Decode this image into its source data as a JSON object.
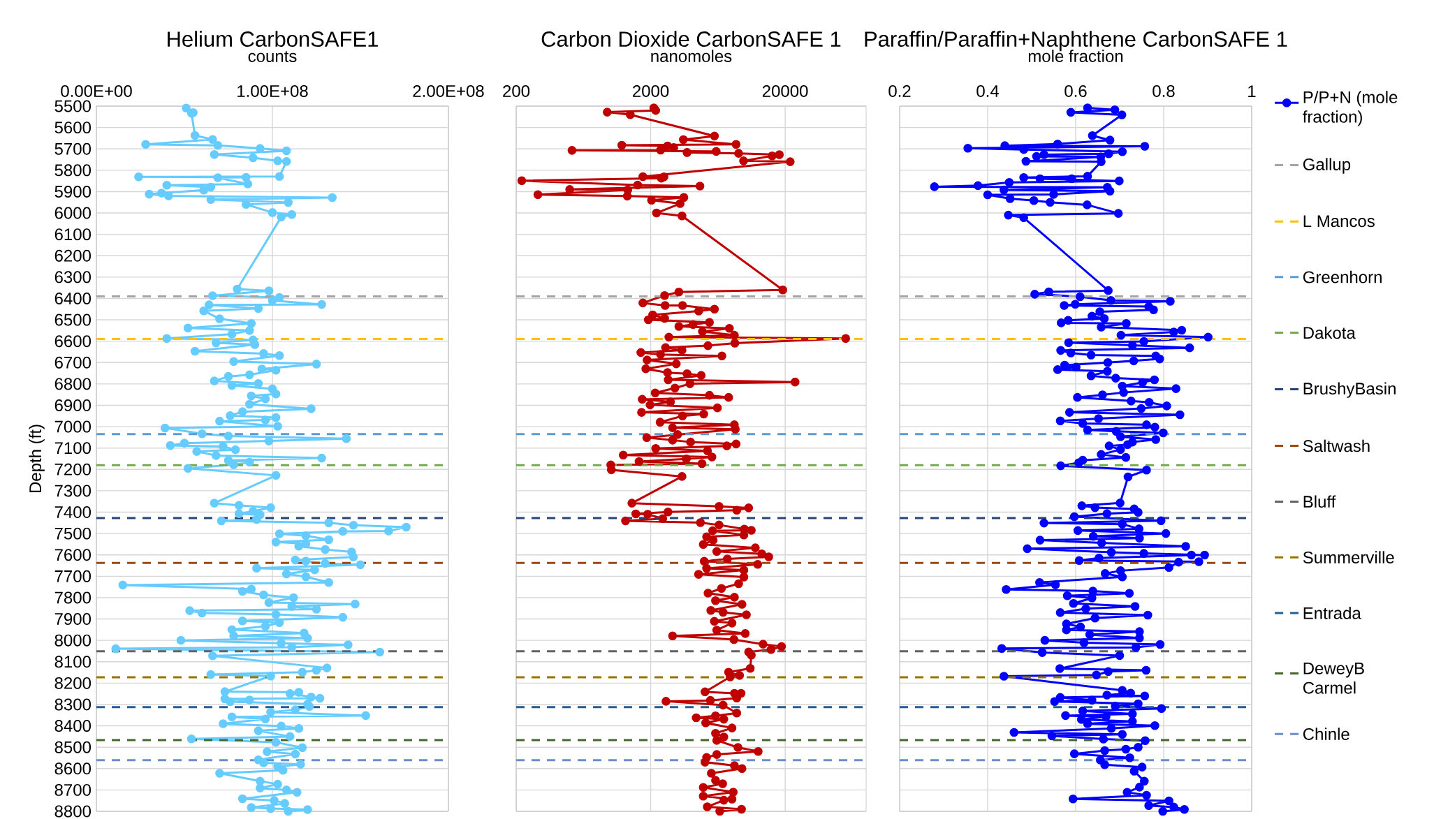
{
  "chart_data": [
    {
      "type": "line",
      "title": "Helium CarbonSAFE1",
      "subtitle": "counts",
      "ylabel": "Depth (ft)",
      "xlim": [
        0,
        200000000
      ],
      "xticks": [
        {
          "value": 0,
          "label": "0.00E+00"
        },
        {
          "value": 100000000,
          "label": "1.00E+08"
        },
        {
          "value": 200000000,
          "label": "2.00E+08"
        }
      ],
      "ylim": [
        8800,
        5500
      ],
      "yticks": [
        5500,
        5600,
        5700,
        5800,
        5900,
        6000,
        6100,
        6200,
        6300,
        6400,
        6500,
        6600,
        6700,
        6800,
        6900,
        7000,
        7100,
        7200,
        7300,
        7400,
        7500,
        7600,
        7700,
        7800,
        7900,
        8000,
        8100,
        8200,
        8300,
        8400,
        8500,
        8600,
        8700,
        8800
      ],
      "grid": true,
      "marker": "circle",
      "series": [
        {
          "color": "#66ccff",
          "x": [
            51000000.0,
            55000000.0,
            54000000.0,
            56000000.0,
            66000000.0,
            28000000.0,
            69000000.0,
            93000000.0,
            108000000.0,
            67000000.0,
            89000000.0,
            103000000.0,
            108000000.0,
            104000000.0,
            24000000.0,
            85000000.0,
            69000000.0,
            86000000.0,
            40000000.0,
            65000000.0,
            61000000.0,
            37000000.0,
            30000000.0,
            41000000.0,
            134000000.0,
            65000000.0,
            109000000.0,
            85000000.0,
            100000000.0,
            111000000.0,
            105000000.0,
            80000000.0,
            98000000.0,
            66000000.0,
            104000000.0,
            100000000.0,
            128000000.0,
            64000000.0,
            92000000.0,
            61000000.0,
            70000000.0,
            88000000.0,
            52000000.0,
            87000000.0,
            77000000.0,
            40000000.0,
            89000000.0,
            68000000.0,
            90000000.0,
            56000000.0,
            95000000.0,
            104000000.0,
            78000000.0,
            125000000.0,
            94000000.0,
            102000000.0,
            87000000.0,
            75000000.0,
            67000000.0,
            92000000.0,
            77000000.0,
            100000000.0,
            102000000.0,
            88000000.0,
            96000000.0,
            87000000.0,
            122000000.0,
            83000000.0,
            76000000.0,
            102000000.0,
            96000000.0,
            70000000.0,
            103000000.0,
            39000000.0,
            60000000.0,
            75000000.0,
            142000000.0,
            98000000.0,
            50000000.0,
            42000000.0,
            72000000.0,
            79000000.0,
            57000000.0,
            68000000.0,
            128000000.0,
            75000000.0,
            87000000.0,
            78000000.0,
            52000000.0,
            102000000.0,
            67000000.0,
            81000000.0,
            99000000.0,
            89000000.0,
            81000000.0,
            93000000.0,
            91000000.0,
            71000000.0,
            132000000.0,
            146000000.0,
            176000000.0,
            166000000.0,
            140000000.0,
            104000000.0,
            119000000.0,
            132000000.0,
            102000000.0,
            119000000.0,
            115000000.0,
            130000000.0,
            145000000.0,
            146000000.0,
            113000000.0,
            119000000.0,
            130000000.0,
            150000000.0,
            91000000.0,
            124000000.0,
            108000000.0,
            119000000.0,
            132000000.0,
            15000000.0,
            88000000.0,
            83000000.0,
            95000000.0,
            112000000.0,
            98000000.0,
            147000000.0,
            111000000.0,
            125000000.0,
            53000000.0,
            60000000.0,
            102000000.0,
            140000000.0,
            83000000.0,
            104000000.0,
            96000000.0,
            77000000.0,
            118000000.0,
            78000000.0,
            120000000.0,
            48000000.0,
            105000000.0,
            143000000.0,
            111000000.0,
            11000000.0,
            161000000.0,
            66000000.0,
            131000000.0,
            125000000.0,
            117000000.0,
            65000000.0,
            99000000.0,
            73000000.0,
            115000000.0,
            110000000.0,
            122000000.0,
            127000000.0,
            73000000.0,
            87000000.0,
            76000000.0,
            120000000.0,
            121000000.0,
            113000000.0,
            99000000.0,
            153000000.0,
            77000000.0,
            96000000.0,
            72000000.0,
            105000000.0,
            115000000.0,
            92000000.0,
            110000000.0,
            54000000.0,
            102000000.0,
            117000000.0,
            97000000.0,
            113000000.0,
            92000000.0,
            95000000.0,
            116000000.0,
            103000000.0,
            106000000.0,
            70000000.0,
            93000000.0,
            103000000.0,
            93000000.0,
            108000000.0,
            114000000.0,
            83000000.0,
            101000000.0,
            107000000.0,
            88000000.0,
            99000000.0,
            120000000.0,
            109000000.0
          ],
          "values": [
            5509,
            5530,
            5533,
            5637,
            5656,
            5679,
            5684,
            5698,
            5709,
            5726,
            5742,
            5756,
            5759,
            5829,
            5831,
            5833,
            5835,
            5864,
            5870,
            5879,
            5893,
            5907,
            5912,
            5920,
            5928,
            5937,
            5951,
            5960,
            5998,
            6007,
            6019,
            6356,
            6364,
            6387,
            6395,
            6410,
            6428,
            6430,
            6447,
            6458,
            6495,
            6517,
            6538,
            6550,
            6567,
            6587,
            6594,
            6608,
            6616,
            6647,
            6658,
            6667,
            6695,
            6707,
            6730,
            6736,
            6757,
            6765,
            6786,
            6798,
            6807,
            6823,
            6847,
            6856,
            6870,
            6895,
            6916,
            6930,
            6948,
            6957,
            6969,
            6974,
            6998,
            7006,
            7033,
            7044,
            7056,
            7067,
            7077,
            7088,
            7093,
            7108,
            7116,
            7135,
            7147,
            7158,
            7166,
            7178,
            7195,
            7228,
            7358,
            7368,
            7379,
            7396,
            7407,
            7412,
            7434,
            7441,
            7450,
            7461,
            7470,
            7488,
            7490,
            7501,
            7510,
            7529,
            7540,
            7548,
            7559,
            7575,
            7586,
            7610,
            7624,
            7629,
            7640,
            7646,
            7662,
            7670,
            7689,
            7702,
            7729,
            7741,
            7760,
            7771,
            7787,
            7800,
            7823,
            7830,
            7841,
            7854,
            7861,
            7872,
            7879,
            7892,
            7909,
            7917,
            7934,
            7950,
            7966,
            7979,
            7990,
            8000,
            8013,
            8021,
            8032,
            8039,
            8055,
            8072,
            8129,
            8140,
            8149,
            8160,
            8167,
            8240,
            8243,
            8249,
            8265,
            8271,
            8274,
            8279,
            8287,
            8298,
            8309,
            8325,
            8336,
            8352,
            8358,
            8368,
            8390,
            8401,
            8412,
            8423,
            8450,
            8461,
            8477,
            8502,
            8521,
            8532,
            8559,
            8573,
            8580,
            8591,
            8608,
            8622,
            8659,
            8673,
            8691,
            8700,
            8711,
            8741,
            8749,
            8763,
            8782,
            8787,
            8792,
            8800
          ]
        }
      ],
      "ref_lines": [
        {
          "axis": "y",
          "value": 6390,
          "color": "#a5a5a5",
          "line_style": "dashed"
        },
        {
          "axis": "y",
          "value": 6590,
          "color": "#ffc000",
          "line_style": "dashed"
        },
        {
          "axis": "y",
          "value": 7035,
          "color": "#5b9bd5",
          "line_style": "dashed"
        },
        {
          "axis": "y",
          "value": 7180,
          "color": "#70ad47",
          "line_style": "dashed"
        },
        {
          "axis": "y",
          "value": 7428,
          "color": "#264478",
          "line_style": "dashed"
        },
        {
          "axis": "y",
          "value": 7638,
          "color": "#9e480e",
          "line_style": "dashed"
        },
        {
          "axis": "y",
          "value": 8051,
          "color": "#636363",
          "line_style": "dashed"
        },
        {
          "axis": "y",
          "value": 8173,
          "color": "#997300",
          "line_style": "dashed"
        },
        {
          "axis": "y",
          "value": 8312,
          "color": "#255e91",
          "line_style": "dashed"
        },
        {
          "axis": "y",
          "value": 8467,
          "color": "#43682b",
          "line_style": "dashed"
        },
        {
          "axis": "y",
          "value": 8561,
          "color": "#698ed0",
          "line_style": "dashed"
        }
      ]
    },
    {
      "type": "line",
      "title": "Carbon Dioxide CarbonSAFE 1",
      "subtitle": "nanomoles",
      "log": "x",
      "xlim": [
        200,
        80000
      ],
      "xticks": [
        200,
        2000,
        20000
      ],
      "ylim": [
        8800,
        5500
      ],
      "yticks": [
        5500,
        5600,
        5700,
        5800,
        5900,
        6000,
        6100,
        6200,
        6300,
        6400,
        6500,
        6600,
        6700,
        6800,
        6900,
        7000,
        7100,
        7200,
        7300,
        7400,
        7500,
        7600,
        7700,
        7800,
        7900,
        8000,
        8100,
        8200,
        8300,
        8400,
        8500,
        8600,
        8700,
        8800
      ],
      "tick_labels": "x",
      "grid": true,
      "marker": "circle",
      "series": [
        {
          "color": "#c00000",
          "x": [
            2110,
            2180,
            950,
            1410,
            5960,
            3500,
            8630,
            1220,
            2670,
            2970,
            2370,
            520,
            6140,
            3730,
            9010,
            18100,
            16000,
            9810,
            21800,
            1750,
            2510,
            2400,
            220,
            1600,
            4650,
            500,
            1350,
            290,
            1340,
            3530,
            2030,
            3310,
            2210,
            3420,
            19200,
            3240,
            2540,
            1750,
            2560,
            3450,
            5960,
            4550,
            2070,
            2540,
            1920,
            5470,
            4130,
            3240,
            7700,
            4850,
            8380,
            2730,
            56400,
            8450,
            5330,
            2580,
            3420,
            1690,
            2370,
            6770,
            1880,
            3100,
            1840,
            2670,
            3730,
            4750,
            2700,
            23700,
            3920,
            3030,
            2160,
            5470,
            7600,
            1730,
            2810,
            1980,
            6270,
            1710,
            4960,
            3450,
            2350,
            8380,
            2910,
            8520,
            3170,
            1870,
            2910,
            3960,
            8630,
            7370,
            2180,
            5290,
            1250,
            5710,
            3680,
            1640,
            4810,
            1010,
            1020,
            3420,
            1450,
            6450,
            10700,
            8730,
            2690,
            1550,
            1900,
            2460,
            1300,
            4690,
            6450,
            9940,
            11200,
            5780,
            9860,
            5210,
            5830,
            4920,
            12000,
            6200,
            13400,
            15100,
            7430,
            5000,
            12500,
            5210,
            9860,
            4540,
            9860,
            9020,
            6720,
            5340,
            8390,
            6070,
            9550,
            5600,
            6910,
            10300,
            5950,
            8050,
            6200,
            10100,
            2910,
            8320,
            13700,
            18800,
            15700,
            10700,
            11200,
            11000,
            7590,
            9170,
            7800,
            5070,
            8390,
            9400,
            8730,
            5560,
            2600,
            6910,
            8730,
            6070,
            4360,
            7000,
            5130,
            8050,
            6070,
            7000,
            6200,
            8910,
            12600,
            6200,
            5210,
            5070,
            8390,
            9550,
            5650,
            6070,
            6860,
            4920,
            8220,
            4920,
            8050,
            7000,
            5270,
            9470,
            6530
          ],
          "values": [
            5508,
            5520,
            5528,
            5540,
            5640,
            5657,
            5679,
            5683,
            5686,
            5694,
            5706,
            5707,
            5712,
            5717,
            5721,
            5727,
            5733,
            5756,
            5760,
            5830,
            5831,
            5837,
            5849,
            5869,
            5874,
            5890,
            5892,
            5914,
            5921,
            5927,
            5940,
            5956,
            6000,
            6014,
            6360,
            6370,
            6386,
            6421,
            6433,
            6433,
            6450,
            6459,
            6477,
            6493,
            6500,
            6512,
            6522,
            6531,
            6540,
            6555,
            6572,
            6581,
            6587,
            6609,
            6621,
            6630,
            6642,
            6653,
            6662,
            6669,
            6688,
            6706,
            6729,
            6747,
            6752,
            6760,
            6781,
            6791,
            6799,
            6819,
            6842,
            6853,
            6863,
            6872,
            6884,
            6898,
            6912,
            6933,
            6941,
            6950,
            6979,
            6991,
            7005,
            7012,
            7037,
            7051,
            7063,
            7072,
            7081,
            7090,
            7102,
            7113,
            7133,
            7142,
            7151,
            7163,
            7173,
            7179,
            7202,
            7233,
            7358,
            7373,
            7380,
            7391,
            7399,
            7408,
            7410,
            7430,
            7441,
            7449,
            7460,
            7479,
            7485,
            7487,
            7507,
            7515,
            7531,
            7551,
            7567,
            7584,
            7595,
            7609,
            7619,
            7630,
            7644,
            7663,
            7671,
            7691,
            7704,
            7735,
            7757,
            7779,
            7798,
            7814,
            7831,
            7860,
            7869,
            7880,
            7911,
            7919,
            7952,
            7968,
            7979,
            7996,
            8018,
            8029,
            8043,
            8054,
            8069,
            8131,
            8149,
            8164,
            8171,
            8241,
            8248,
            8248,
            8270,
            8281,
            8285,
            8303,
            8340,
            8353,
            8362,
            8369,
            8386,
            8410,
            8435,
            8452,
            8468,
            8501,
            8520,
            8534,
            8548,
            8570,
            8586,
            8600,
            8622,
            8655,
            8671,
            8688,
            8710,
            8729,
            8743,
            8748,
            8779,
            8790,
            8800
          ]
        }
      ],
      "ref_lines": [
        {
          "axis": "y",
          "value": 6390,
          "color": "#a5a5a5",
          "line_style": "dashed"
        },
        {
          "axis": "y",
          "value": 6590,
          "color": "#ffc000",
          "line_style": "dashed"
        },
        {
          "axis": "y",
          "value": 7035,
          "color": "#5b9bd5",
          "line_style": "dashed"
        },
        {
          "axis": "y",
          "value": 7180,
          "color": "#70ad47",
          "line_style": "dashed"
        },
        {
          "axis": "y",
          "value": 7428,
          "color": "#264478",
          "line_style": "dashed"
        },
        {
          "axis": "y",
          "value": 7638,
          "color": "#9e480e",
          "line_style": "dashed"
        },
        {
          "axis": "y",
          "value": 8051,
          "color": "#636363",
          "line_style": "dashed"
        },
        {
          "axis": "y",
          "value": 8173,
          "color": "#997300",
          "line_style": "dashed"
        },
        {
          "axis": "y",
          "value": 8312,
          "color": "#255e91",
          "line_style": "dashed"
        },
        {
          "axis": "y",
          "value": 8467,
          "color": "#43682b",
          "line_style": "dashed"
        },
        {
          "axis": "y",
          "value": 8561,
          "color": "#698ed0",
          "line_style": "dashed"
        }
      ]
    },
    {
      "type": "line",
      "title": "Paraffin/Paraffin+Naphthene CarbonSAFE 1",
      "subtitle": "mole fraction",
      "xlim": [
        0.2,
        1
      ],
      "xticks": [
        0.2,
        0.4,
        0.6,
        0.8,
        1
      ],
      "ylim": [
        8800,
        5500
      ],
      "yticks": [
        5500,
        5600,
        5700,
        5800,
        5900,
        6000,
        6100,
        6200,
        6300,
        6400,
        6500,
        6600,
        6700,
        6800,
        6900,
        7000,
        7100,
        7200,
        7300,
        7400,
        7500,
        7600,
        7700,
        7800,
        7900,
        8000,
        8100,
        8200,
        8300,
        8400,
        8500,
        8600,
        8700,
        8800
      ],
      "tick_labels": "x",
      "grid": true,
      "marker": "circle",
      "legend": "right",
      "series": [
        {
          "name": "P/P+N (mole fraction)",
          "color": "#0000ff",
          "x": [
            0.627,
            0.689,
            0.589,
            0.705,
            0.638,
            0.678,
            0.559,
            0.439,
            0.757,
            0.355,
            0.482,
            0.706,
            0.675,
            0.528,
            0.511,
            0.657,
            0.487,
            0.658,
            0.627,
            0.482,
            0.591,
            0.519,
            0.699,
            0.449,
            0.378,
            0.279,
            0.672,
            0.437,
            0.678,
            0.55,
            0.4,
            0.451,
            0.505,
            0.542,
            0.626,
            0.697,
            0.447,
            0.482,
            0.674,
            0.539,
            0.507,
            0.61,
            0.68,
            0.815,
            0.599,
            0.574,
            0.766,
            0.777,
            0.655,
            0.637,
            0.665,
            0.583,
            0.567,
            0.715,
            0.658,
            0.841,
            0.823,
            0.703,
            0.901,
            0.755,
            0.584,
            0.729,
            0.859,
            0.566,
            0.589,
            0.635,
            0.782,
            0.791,
            0.732,
            0.673,
            0.575,
            0.601,
            0.559,
            0.672,
            0.635,
            0.691,
            0.779,
            0.752,
            0.706,
            0.828,
            0.709,
            0.661,
            0.604,
            0.726,
            0.767,
            0.807,
            0.749,
            0.586,
            0.837,
            0.652,
            0.565,
            0.616,
            0.761,
            0.78,
            0.627,
            0.692,
            0.799,
            0.702,
            0.782,
            0.729,
            0.718,
            0.676,
            0.702,
            0.658,
            0.714,
            0.616,
            0.607,
            0.566,
            0.761,
            0.719,
            0.701,
            0.614,
            0.644,
            0.733,
            0.742,
            0.671,
            0.597,
            0.794,
            0.528,
            0.706,
            0.744,
            0.605,
            0.805,
            0.64,
            0.745,
            0.519,
            0.659,
            0.85,
            0.49,
            0.681,
            0.755,
            0.893,
            0.863,
            0.653,
            0.608,
            0.88,
            0.834,
            0.812,
            0.702,
            0.667,
            0.706,
            0.518,
            0.554,
            0.442,
            0.639,
            0.722,
            0.581,
            0.637,
            0.595,
            0.735,
            0.623,
            0.565,
            0.764,
            0.644,
            0.579,
            0.611,
            0.579,
            0.745,
            0.632,
            0.745,
            0.53,
            0.619,
            0.792,
            0.737,
            0.432,
            0.524,
            0.7,
            0.564,
            0.76,
            0.674,
            0.647,
            0.437,
            0.706,
            0.725,
            0.671,
            0.757,
            0.565,
            0.637,
            0.552,
            0.742,
            0.69,
            0.795,
            0.616,
            0.729,
            0.577,
            0.669,
            0.613,
            0.729,
            0.627,
            0.78,
            0.681,
            0.46,
            0.706,
            0.546,
            0.663,
            0.758,
            0.742,
            0.714,
            0.666,
            0.597,
            0.723,
            0.656,
            0.666,
            0.751,
            0.733,
            0.756,
            0.745,
            0.717,
            0.761,
            0.594,
            0.812,
            0.766,
            0.823,
            0.847,
            0.798
          ],
          "values": [
            5508,
            5517,
            5529,
            5541,
            5638,
            5659,
            5677,
            5685,
            5688,
            5697,
            5703,
            5713,
            5723,
            5727,
            5735,
            5738,
            5758,
            5760,
            5828,
            5834,
            5840,
            5840,
            5850,
            5857,
            5872,
            5877,
            5880,
            5892,
            5898,
            5913,
            5915,
            5933,
            5942,
            5950,
            5962,
            6002,
            6010,
            6022,
            6363,
            6369,
            6380,
            6392,
            6409,
            6413,
            6427,
            6433,
            6438,
            6453,
            6462,
            6483,
            6494,
            6502,
            6514,
            6517,
            6534,
            6549,
            6557,
            6572,
            6581,
            6601,
            6607,
            6619,
            6631,
            6643,
            6655,
            6665,
            6669,
            6683,
            6692,
            6700,
            6712,
            6721,
            6733,
            6741,
            6762,
            6773,
            6781,
            6793,
            6810,
            6822,
            6840,
            6851,
            6863,
            6880,
            6886,
            6903,
            6915,
            6933,
            6944,
            6962,
            6973,
            6985,
            6991,
            7002,
            7015,
            7022,
            7029,
            7047,
            7060,
            7072,
            7084,
            7090,
            7107,
            7130,
            7144,
            7157,
            7169,
            7183,
            7203,
            7235,
            7357,
            7370,
            7379,
            7385,
            7401,
            7407,
            7421,
            7440,
            7451,
            7456,
            7478,
            7486,
            7500,
            7513,
            7522,
            7531,
            7544,
            7560,
            7571,
            7588,
            7593,
            7601,
            7601,
            7615,
            7626,
            7632,
            7634,
            7659,
            7674,
            7687,
            7703,
            7729,
            7740,
            7762,
            7769,
            7780,
            7791,
            7802,
            7827,
            7841,
            7852,
            7870,
            7882,
            7896,
            7923,
            7937,
            7951,
            7959,
            7973,
            7989,
            8000,
            8011,
            8019,
            8033,
            8038,
            8057,
            8071,
            8132,
            8140,
            8146,
            8162,
            8168,
            8234,
            8247,
            8256,
            8260,
            8267,
            8280,
            8286,
            8297,
            8308,
            8319,
            8330,
            8344,
            8352,
            8357,
            8370,
            8379,
            8390,
            8399,
            8412,
            8431,
            8440,
            8447,
            8462,
            8469,
            8500,
            8509,
            8516,
            8531,
            8549,
            8560,
            8582,
            8593,
            8612,
            8659,
            8687,
            8711,
            8725,
            8742,
            8751,
            8773,
            8780,
            8791,
            8800
          ]
        }
      ],
      "ref_lines": [
        {
          "axis": "y",
          "value": 6390,
          "label": "Gallup",
          "color": "#a5a5a5",
          "line_style": "dashed"
        },
        {
          "axis": "y",
          "value": 6590,
          "label": "L Mancos",
          "color": "#ffc000",
          "line_style": "dashed"
        },
        {
          "axis": "y",
          "value": 7035,
          "label": "Greenhorn",
          "color": "#5b9bd5",
          "line_style": "dashed"
        },
        {
          "axis": "y",
          "value": 7180,
          "label": "Dakota",
          "color": "#70ad47",
          "line_style": "dashed"
        },
        {
          "axis": "y",
          "value": 7428,
          "label": "BrushyBasin",
          "color": "#264478",
          "line_style": "dashed"
        },
        {
          "axis": "y",
          "value": 7638,
          "label": "Saltwash",
          "color": "#9e480e",
          "line_style": "dashed"
        },
        {
          "axis": "y",
          "value": 8051,
          "label": "Bluff",
          "color": "#636363",
          "line_style": "dashed"
        },
        {
          "axis": "y",
          "value": 8173,
          "label": "Summerville",
          "color": "#997300",
          "line_style": "dashed"
        },
        {
          "axis": "y",
          "value": 8312,
          "label": "Entrada",
          "color": "#255e91",
          "line_style": "dashed"
        },
        {
          "axis": "y",
          "value": 8467,
          "label": "DeweyB Carmel",
          "color": "#43682b",
          "line_style": "dashed"
        },
        {
          "axis": "y",
          "value": 8561,
          "label": "Chinle",
          "color": "#698ed0",
          "line_style": "dashed"
        }
      ]
    }
  ]
}
